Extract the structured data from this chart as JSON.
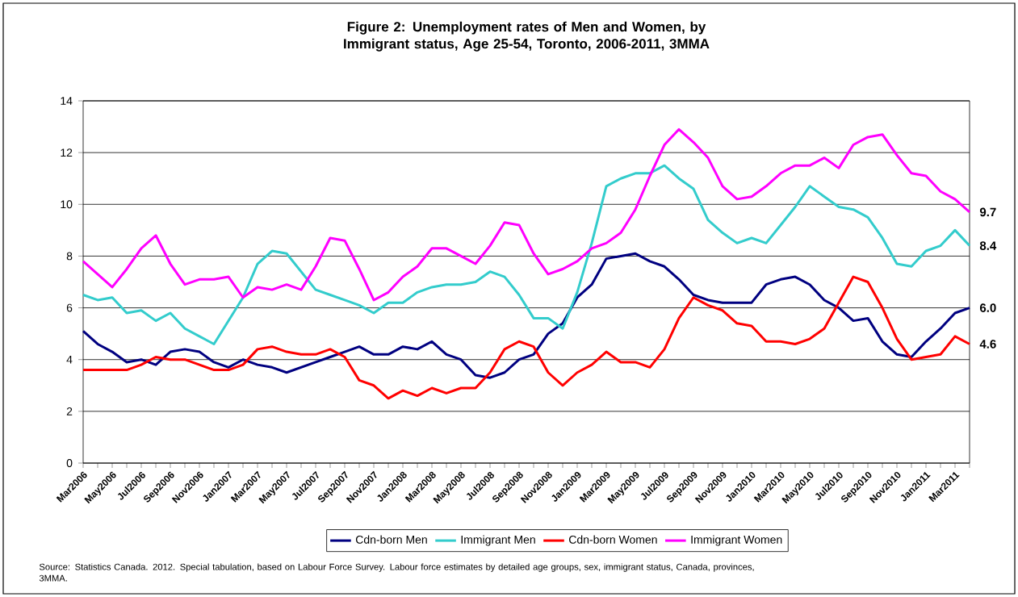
{
  "chart_data": {
    "type": "line",
    "title": "Figure 2: Unemployment rates of Men and Women, by Immigrant status, Age 25-54, Toronto, 2006-2011, 3MMA",
    "categories": [
      "Mar2006",
      null,
      "May2006",
      null,
      "Jul2006",
      null,
      "Sep2006",
      null,
      "Nov2006",
      null,
      "Jan2007",
      null,
      "Mar2007",
      null,
      "May2007",
      null,
      "Jul2007",
      null,
      "Sep2007",
      null,
      "Nov2007",
      null,
      "Jan2008",
      null,
      "Mar2008",
      null,
      "May2008",
      null,
      "Jul2008",
      null,
      "Sep2008",
      null,
      "Nov2008",
      null,
      "Jan2009",
      null,
      "Mar2009",
      null,
      "May2009",
      null,
      "Jul2009",
      null,
      "Sep2009",
      null,
      "Nov2009",
      null,
      "Jan2010",
      null,
      "Mar2010",
      null,
      "May2010",
      null,
      "Jul2010",
      null,
      "Sep2010",
      null,
      "Nov2010",
      null,
      "Jan2011",
      null,
      "Mar2011",
      null
    ],
    "series": [
      {
        "name": "Cdn-born Men",
        "color": "#000080",
        "values": [
          5.1,
          4.6,
          4.3,
          3.9,
          4.0,
          3.8,
          4.3,
          4.4,
          4.3,
          3.9,
          3.7,
          4.0,
          3.8,
          3.7,
          3.5,
          3.7,
          3.9,
          4.1,
          4.3,
          4.5,
          4.2,
          4.2,
          4.5,
          4.4,
          4.7,
          4.2,
          4.0,
          3.4,
          3.3,
          3.5,
          4.0,
          4.2,
          5.0,
          5.4,
          6.4,
          6.9,
          7.9,
          8.0,
          8.1,
          7.8,
          7.6,
          7.1,
          6.5,
          6.3,
          6.2,
          6.2,
          6.2,
          6.9,
          7.1,
          7.2,
          6.9,
          6.3,
          6.0,
          5.5,
          5.6,
          4.7,
          4.2,
          4.1,
          4.7,
          5.2,
          5.8,
          6.0
        ],
        "value_labels": [
          null,
          null,
          null,
          null,
          null,
          null,
          null,
          null,
          null,
          null,
          null,
          null,
          null,
          null,
          null,
          null,
          null,
          null,
          null,
          null,
          null,
          null,
          null,
          null,
          null,
          null,
          null,
          null,
          null,
          null,
          null,
          null,
          null,
          null,
          null,
          null,
          null,
          null,
          null,
          null,
          null,
          null,
          null,
          null,
          null,
          null,
          null,
          null,
          null,
          null,
          null,
          null,
          null,
          null,
          null,
          null,
          null,
          null,
          null,
          null,
          null,
          "6.0"
        ]
      },
      {
        "name": "Immigrant Men",
        "color": "#33CCCC",
        "values": [
          6.5,
          6.3,
          6.4,
          5.8,
          5.9,
          5.5,
          5.8,
          5.2,
          4.9,
          4.6,
          5.5,
          6.4,
          7.7,
          8.2,
          8.1,
          7.4,
          6.7,
          6.5,
          6.3,
          6.1,
          5.8,
          6.2,
          6.2,
          6.6,
          6.8,
          6.9,
          6.9,
          7.0,
          7.4,
          7.2,
          6.5,
          5.6,
          5.6,
          5.2,
          6.6,
          8.5,
          10.7,
          11.0,
          11.2,
          11.2,
          11.5,
          11.0,
          10.6,
          9.4,
          8.9,
          8.5,
          8.7,
          8.5,
          9.2,
          9.9,
          10.7,
          10.3,
          9.9,
          9.8,
          9.5,
          8.7,
          7.7,
          7.6,
          8.2,
          8.4,
          9.0,
          8.4
        ],
        "value_labels": [
          null,
          null,
          null,
          null,
          null,
          null,
          null,
          null,
          null,
          null,
          null,
          null,
          null,
          null,
          null,
          null,
          null,
          null,
          null,
          null,
          null,
          null,
          null,
          null,
          null,
          null,
          null,
          null,
          null,
          null,
          null,
          null,
          null,
          null,
          null,
          null,
          null,
          null,
          null,
          null,
          null,
          null,
          null,
          null,
          null,
          null,
          null,
          null,
          null,
          null,
          null,
          null,
          null,
          null,
          null,
          null,
          null,
          null,
          null,
          null,
          null,
          "8.4"
        ]
      },
      {
        "name": "Cdn-born Women",
        "color": "#FF0000",
        "values": [
          3.6,
          3.6,
          3.6,
          3.6,
          3.8,
          4.1,
          4.0,
          4.0,
          3.8,
          3.6,
          3.6,
          3.8,
          4.4,
          4.5,
          4.3,
          4.2,
          4.2,
          4.4,
          4.1,
          3.2,
          3.0,
          2.5,
          2.8,
          2.6,
          2.9,
          2.7,
          2.9,
          2.9,
          3.5,
          4.4,
          4.7,
          4.5,
          3.5,
          3.0,
          3.5,
          3.8,
          4.3,
          3.9,
          3.9,
          3.7,
          4.4,
          5.6,
          6.4,
          6.1,
          5.9,
          5.4,
          5.3,
          4.7,
          4.7,
          4.6,
          4.8,
          5.2,
          6.2,
          7.2,
          7.0,
          6.0,
          4.8,
          4.0,
          4.1,
          4.2,
          4.9,
          4.6
        ],
        "value_labels": [
          null,
          null,
          null,
          null,
          null,
          null,
          null,
          null,
          null,
          null,
          null,
          null,
          null,
          null,
          null,
          null,
          null,
          null,
          null,
          null,
          null,
          null,
          null,
          null,
          null,
          null,
          null,
          null,
          null,
          null,
          null,
          null,
          null,
          null,
          null,
          null,
          null,
          null,
          null,
          null,
          null,
          null,
          null,
          null,
          null,
          null,
          null,
          null,
          null,
          null,
          null,
          null,
          null,
          null,
          null,
          null,
          null,
          null,
          null,
          null,
          null,
          "4.6"
        ]
      },
      {
        "name": "Immigrant Women",
        "color": "#FF00FF",
        "values": [
          7.8,
          7.3,
          6.8,
          7.5,
          8.3,
          8.8,
          7.7,
          6.9,
          7.1,
          7.1,
          7.2,
          6.4,
          6.8,
          6.7,
          6.9,
          6.7,
          7.6,
          8.7,
          8.6,
          7.5,
          6.3,
          6.6,
          7.2,
          7.6,
          8.3,
          8.3,
          8.0,
          7.7,
          8.4,
          9.3,
          9.2,
          8.1,
          7.3,
          7.5,
          7.8,
          8.3,
          8.5,
          8.9,
          9.8,
          11.1,
          12.3,
          12.9,
          12.4,
          11.8,
          10.7,
          10.2,
          10.3,
          10.7,
          11.2,
          11.5,
          11.5,
          11.8,
          11.4,
          12.3,
          12.6,
          12.7,
          11.9,
          11.2,
          11.1,
          10.5,
          10.2,
          9.7
        ],
        "value_labels": [
          null,
          null,
          null,
          null,
          null,
          null,
          null,
          null,
          null,
          null,
          null,
          null,
          null,
          null,
          null,
          null,
          null,
          null,
          null,
          null,
          null,
          null,
          null,
          null,
          null,
          null,
          null,
          null,
          null,
          null,
          null,
          null,
          null,
          null,
          null,
          null,
          null,
          null,
          null,
          null,
          null,
          null,
          null,
          null,
          null,
          null,
          null,
          null,
          null,
          null,
          null,
          null,
          null,
          null,
          null,
          null,
          null,
          null,
          null,
          null,
          null,
          "9.7"
        ]
      }
    ],
    "ylim": [
      0,
      14
    ],
    "yticks": [
      0,
      2,
      4,
      6,
      8,
      10,
      12,
      14
    ],
    "grid": "y",
    "legend": "bottom",
    "annotations": [
      "Source: Statistics Canada. 2012. Special tabulation, based on Labour Force Survey. Labour force estimates by detailed age groups, sex, immigrant status, Canada, provinces, 3MMA."
    ]
  }
}
